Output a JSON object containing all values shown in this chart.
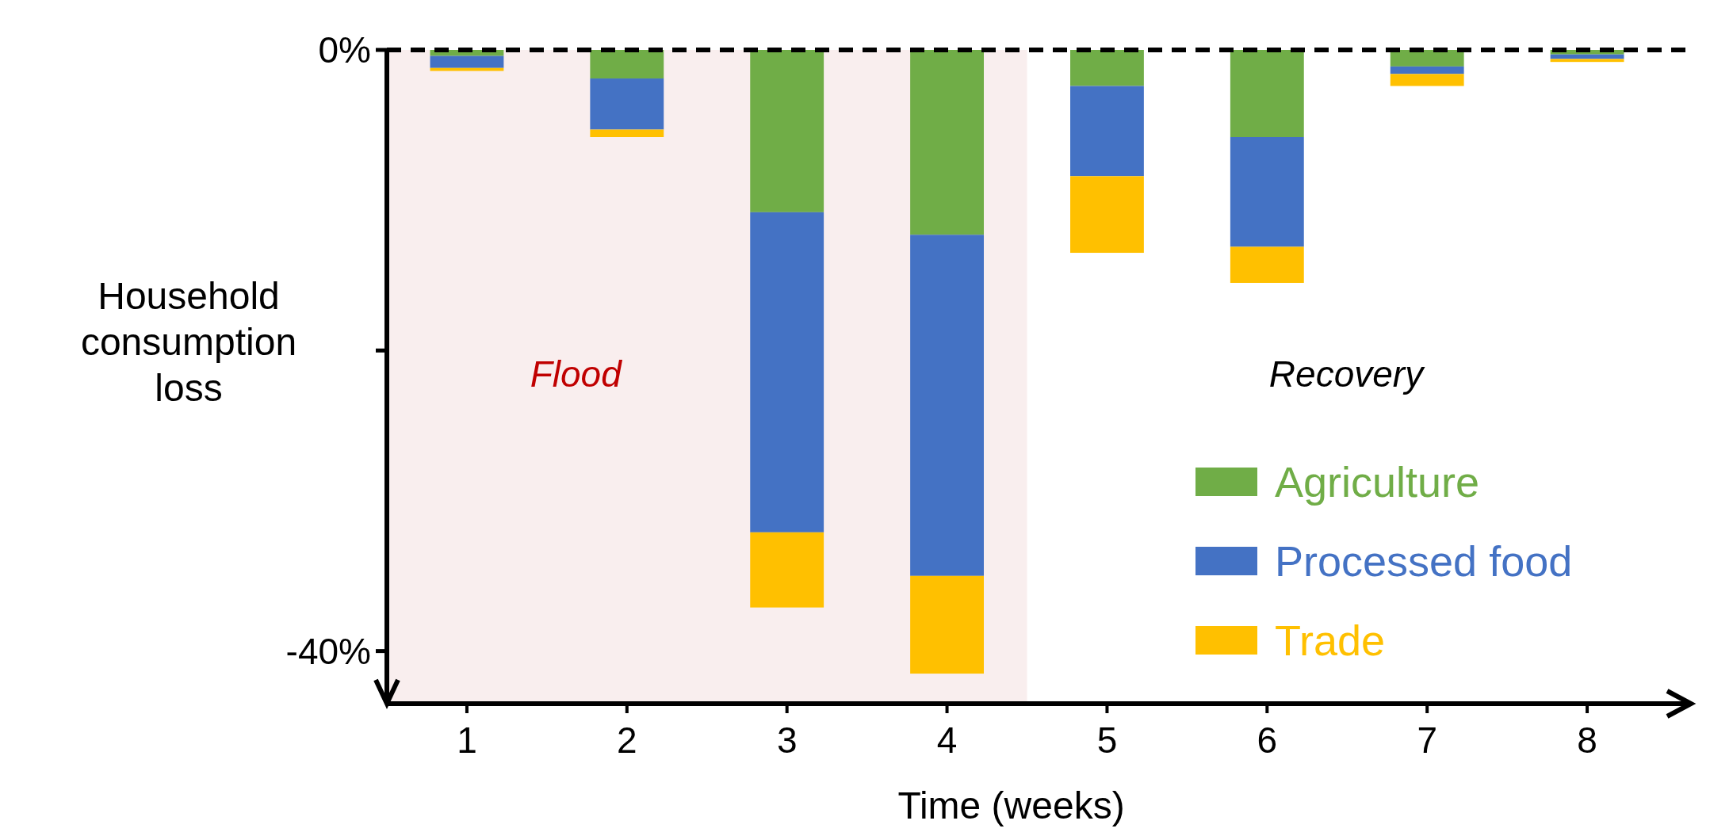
{
  "chart_data": {
    "type": "bar",
    "stacked": true,
    "xlabel": "Time (weeks)",
    "ylabel": "Household consumption loss",
    "categories": [
      "1",
      "2",
      "3",
      "4",
      "5",
      "6",
      "7",
      "8"
    ],
    "series": [
      {
        "name": "Agriculture",
        "color": "#70ad47",
        "values": [
          -0.4,
          -1.9,
          -10.8,
          -12.3,
          -2.4,
          -5.8,
          -1.1,
          -0.3
        ]
      },
      {
        "name": "Processed food",
        "color": "#4472c4",
        "values": [
          -0.8,
          -3.4,
          -21.3,
          -22.7,
          -6.0,
          -7.3,
          -0.5,
          -0.3
        ]
      },
      {
        "name": "Trade",
        "color": "#ffc000",
        "values": [
          -0.2,
          -0.5,
          -5.0,
          -6.5,
          -5.1,
          -2.4,
          -0.8,
          -0.2
        ]
      }
    ],
    "ylim": [
      -43.5,
      0
    ],
    "yticks": [
      {
        "value": 0,
        "label": "0%"
      },
      {
        "value": -20,
        "label": null
      },
      {
        "value": -40,
        "label": "-40%"
      }
    ],
    "ref_lines": [
      {
        "axis": "y",
        "value": 0,
        "label": null,
        "color": "#000000",
        "line_style": "dashed"
      }
    ],
    "bands": [
      {
        "axis": "x",
        "from": "1",
        "to": "4",
        "label": "Flood",
        "color": "#f9eeee"
      }
    ],
    "annotations": [
      "Recovery"
    ],
    "legend": "bottom right",
    "grid": false
  }
}
